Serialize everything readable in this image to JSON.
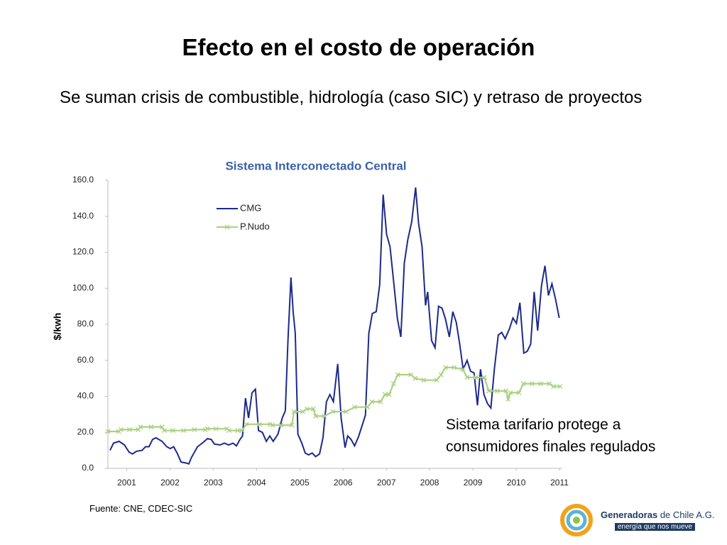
{
  "slide": {
    "title": "Efecto en el costo de operación",
    "body": "Se suman crisis de combustible, hidrología (caso SIC) y retraso de proyectos",
    "source": "Fuente: CNE, CDEC-SIC",
    "logo_name": "Generadoras",
    "logo_rest": "de Chile A.G.",
    "logo_tagline": "energía que nos mueve"
  },
  "chart_data": {
    "type": "line",
    "title": "Sistema Interconectado Central",
    "ylabel": "$/kwh",
    "annotation": "Sistema tarifario protege a consumidores finales regulados",
    "legend": "upper left",
    "xlim": [
      2001,
      2011.5
    ],
    "xticks": [
      {
        "value": 2001.5,
        "label": "2001"
      },
      {
        "value": 2002.5,
        "label": "2002"
      },
      {
        "value": 2003.5,
        "label": "2003"
      },
      {
        "value": 2004.5,
        "label": "2004"
      },
      {
        "value": 2005.5,
        "label": "2005"
      },
      {
        "value": 2006.5,
        "label": "2006"
      },
      {
        "value": 2007.5,
        "label": "2007"
      },
      {
        "value": 2008.5,
        "label": "2008"
      },
      {
        "value": 2009.5,
        "label": "2009"
      },
      {
        "value": 2010.5,
        "label": "2010"
      },
      {
        "value": 2011.5,
        "label": "2011"
      }
    ],
    "ylim": [
      0,
      160
    ],
    "yticks": [
      {
        "value": 0,
        "label": "0.0"
      },
      {
        "value": 20,
        "label": "20.0"
      },
      {
        "value": 40,
        "label": "40.0"
      },
      {
        "value": 60,
        "label": "60.0"
      },
      {
        "value": 80,
        "label": "80.0"
      },
      {
        "value": 100,
        "label": "100.0"
      },
      {
        "value": 120,
        "label": "120.0"
      },
      {
        "value": 140,
        "label": "140.0"
      },
      {
        "value": 160,
        "label": "160.0"
      }
    ],
    "series": [
      {
        "name": "CMG",
        "color": "#1c2a8a",
        "marker": "none",
        "x": [
          2001.05,
          2001.13,
          2001.26,
          2001.38,
          2001.49,
          2001.57,
          2001.66,
          2001.79,
          2001.87,
          2001.95,
          2002.03,
          2002.11,
          2002.25,
          2002.36,
          2002.44,
          2002.52,
          2002.61,
          2002.69,
          2002.8,
          2002.87,
          2002.93,
          2003.07,
          2003.18,
          2003.3,
          2003.39,
          2003.46,
          2003.59,
          2003.69,
          2003.79,
          2003.89,
          2003.97,
          2004.05,
          2004.11,
          2004.18,
          2004.25,
          2004.33,
          2004.41,
          2004.48,
          2004.57,
          2004.66,
          2004.74,
          2004.82,
          2004.93,
          2005.03,
          2005.1,
          2005.16,
          2005.23,
          2005.28,
          2005.33,
          2005.39,
          2005.48,
          2005.56,
          2005.64,
          2005.72,
          2005.8,
          2005.89,
          2005.97,
          2006.05,
          2006.13,
          2006.21,
          2006.31,
          2006.39,
          2006.48,
          2006.54,
          2006.62,
          2006.7,
          2006.79,
          2006.87,
          2006.95,
          2007.03,
          2007.11,
          2007.2,
          2007.28,
          2007.36,
          2007.44,
          2007.52,
          2007.61,
          2007.69,
          2007.77,
          2007.85,
          2007.93,
          2008.02,
          2008.11,
          2008.18,
          2008.26,
          2008.34,
          2008.39,
          2008.48,
          2008.56,
          2008.64,
          2008.72,
          2008.8,
          2008.89,
          2008.97,
          2009.05,
          2009.13,
          2009.21,
          2009.3,
          2009.38,
          2009.46,
          2009.54,
          2009.61,
          2009.69,
          2009.77,
          2009.85,
          2009.93,
          2010.02,
          2010.1,
          2010.18,
          2010.28,
          2010.36,
          2010.44,
          2010.52,
          2010.61,
          2010.69,
          2010.77,
          2010.85,
          2010.93,
          2011.02,
          2011.1,
          2011.18,
          2011.26,
          2011.34,
          2011.43
        ],
        "values": [
          10,
          14,
          15,
          13,
          9,
          8,
          9.5,
          10,
          12,
          12,
          16,
          17,
          15,
          12,
          11,
          12,
          8,
          3.5,
          3,
          2.5,
          6,
          12,
          14,
          16.5,
          16,
          13.5,
          13,
          14,
          13,
          14,
          12.5,
          16,
          18,
          39,
          28,
          42,
          44,
          21,
          20,
          15,
          18,
          15,
          19,
          28,
          32,
          71,
          106,
          87,
          75,
          19,
          14,
          8.5,
          7.5,
          8.5,
          6.5,
          8,
          17,
          37,
          41,
          37,
          58,
          28,
          11.5,
          18,
          16,
          12.5,
          17.5,
          23.5,
          29.5,
          75,
          86,
          87,
          102,
          152,
          130,
          123,
          102,
          83,
          73,
          114,
          127,
          137,
          156,
          136,
          123,
          90.5,
          98,
          71,
          67,
          90,
          89,
          83,
          73,
          87,
          81,
          69,
          55,
          60,
          54,
          53,
          35,
          55,
          41,
          36,
          33.5,
          55,
          74,
          75.5,
          72,
          77.5,
          83.5,
          80.5,
          92,
          64,
          65,
          69,
          98,
          76.5,
          101.5,
          112.5,
          96,
          102.5,
          94.5,
          83.5
        ]
      },
      {
        "name": "P.Nudo",
        "color": "#a9d17f",
        "marker": "x",
        "x": [
          2001,
          2001.25,
          2001.3,
          2001.5,
          2001.7,
          2001.75,
          2002,
          2002.25,
          2002.3,
          2002.5,
          2002.75,
          2003,
          2003.25,
          2003.3,
          2003.5,
          2003.75,
          2003.8,
          2004,
          2004.1,
          2004.2,
          2004.5,
          2004.75,
          2004.8,
          2005,
          2005.25,
          2005.3,
          2005.5,
          2005.6,
          2005.75,
          2005.8,
          2006,
          2006.2,
          2006.5,
          2006.7,
          2007,
          2007.1,
          2007.3,
          2007.4,
          2007.5,
          2007.6,
          2007.7,
          2008,
          2008.1,
          2008.3,
          2008.6,
          2008.7,
          2008.8,
          2009,
          2009.2,
          2009.3,
          2009.5,
          2009.7,
          2009.8,
          2010,
          2010.2,
          2010.25,
          2010.3,
          2010.5,
          2010.6,
          2010.8,
          2011,
          2011.2,
          2011.3,
          2011.45
        ],
        "values": [
          20.5,
          20.5,
          21.5,
          21.5,
          21.5,
          23,
          23,
          23,
          21,
          21,
          21,
          21.5,
          21.5,
          22,
          22,
          22,
          21,
          21,
          21,
          24.5,
          24.5,
          24.5,
          24,
          24,
          24,
          31.5,
          31.5,
          33,
          33,
          29,
          29,
          31.5,
          31.5,
          34,
          34,
          37,
          37,
          41,
          41,
          47,
          52,
          52,
          50,
          49,
          49,
          52,
          56,
          56,
          55,
          50.5,
          50.5,
          50.5,
          43,
          43,
          43,
          38.5,
          42,
          42,
          47,
          47,
          47,
          47,
          45.5,
          45.5
        ]
      }
    ]
  }
}
